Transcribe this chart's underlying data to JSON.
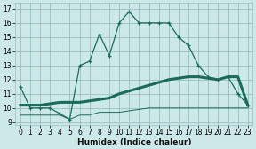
{
  "xlabel": "Humidex (Indice chaleur)",
  "bg_color": "#cce8e8",
  "grid_color": "#9bbfbf",
  "line_color": "#1a6b5a",
  "xlim": [
    -0.5,
    23.5
  ],
  "ylim": [
    8.8,
    17.4
  ],
  "xticks": [
    0,
    1,
    2,
    3,
    4,
    5,
    6,
    7,
    8,
    9,
    10,
    11,
    12,
    13,
    14,
    15,
    16,
    17,
    18,
    19,
    20,
    21,
    22,
    23
  ],
  "yticks": [
    9,
    10,
    11,
    12,
    13,
    14,
    15,
    16,
    17
  ],
  "line1_x": [
    0,
    1,
    2,
    3,
    4,
    5,
    6,
    7,
    8,
    9,
    10,
    11,
    12,
    13,
    14,
    15,
    16,
    17,
    18,
    19,
    20,
    21,
    22,
    23
  ],
  "line1_y": [
    11.5,
    10.0,
    10.0,
    10.0,
    9.6,
    9.2,
    13.0,
    13.3,
    15.2,
    13.7,
    16.0,
    16.8,
    16.0,
    16.0,
    16.0,
    16.0,
    15.0,
    14.4,
    13.0,
    12.2,
    12.0,
    12.2,
    11.0,
    10.2
  ],
  "line2_x": [
    0,
    1,
    2,
    3,
    4,
    5,
    6,
    7,
    8,
    9,
    10,
    11,
    12,
    13,
    14,
    15,
    16,
    17,
    18,
    19,
    20,
    21,
    22,
    23
  ],
  "line2_y": [
    10.2,
    10.2,
    10.2,
    10.3,
    10.4,
    10.4,
    10.4,
    10.5,
    10.6,
    10.7,
    11.0,
    11.2,
    11.4,
    11.6,
    11.8,
    12.0,
    12.1,
    12.2,
    12.2,
    12.1,
    12.0,
    12.2,
    12.2,
    10.2
  ],
  "line3_x": [
    0,
    1,
    2,
    3,
    4,
    5,
    6,
    7,
    8,
    9,
    10,
    11,
    12,
    13,
    14,
    15,
    16,
    17,
    18,
    19,
    20,
    21,
    22,
    23
  ],
  "line3_y": [
    9.5,
    9.5,
    9.5,
    9.5,
    9.5,
    9.2,
    9.5,
    9.5,
    9.7,
    9.7,
    9.7,
    9.8,
    9.9,
    10.0,
    10.0,
    10.0,
    10.0,
    10.0,
    10.0,
    10.0,
    10.0,
    10.0,
    10.0,
    10.0
  ]
}
